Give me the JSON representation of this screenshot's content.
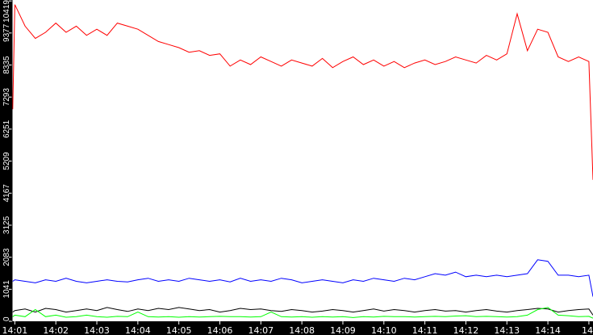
{
  "chart_data": {
    "type": "line",
    "title": "",
    "xlabel": "",
    "ylabel": "",
    "grid": false,
    "legend": "none",
    "background": "#ffffff",
    "xlim": [
      "14:00:56",
      "14:15:06"
    ],
    "ylim": [
      0,
      10450
    ],
    "y_ticks": [
      "0",
      "1041",
      "2083",
      "3125",
      "4167",
      "5209",
      "6251",
      "7293",
      "8335",
      "9377",
      "10419"
    ],
    "x_ticks": [
      "14:01",
      "14:02",
      "14:03",
      "14:04",
      "14:05",
      "14:06",
      "14:07",
      "14:08",
      "14:09",
      "14:10",
      "14:11",
      "14:12",
      "14:13",
      "14:14",
      "14"
    ],
    "x": [
      "14:00:57",
      "14:01:00",
      "14:01:15",
      "14:01:30",
      "14:01:45",
      "14:02:00",
      "14:02:15",
      "14:02:30",
      "14:02:45",
      "14:03:00",
      "14:03:15",
      "14:03:30",
      "14:03:45",
      "14:04:00",
      "14:04:15",
      "14:04:30",
      "14:04:45",
      "14:05:00",
      "14:05:15",
      "14:05:30",
      "14:05:45",
      "14:06:00",
      "14:06:15",
      "14:06:30",
      "14:06:45",
      "14:07:00",
      "14:07:15",
      "14:07:30",
      "14:07:45",
      "14:08:00",
      "14:08:15",
      "14:08:30",
      "14:08:45",
      "14:09:00",
      "14:09:15",
      "14:09:30",
      "14:09:45",
      "14:10:00",
      "14:10:15",
      "14:10:30",
      "14:10:45",
      "14:11:00",
      "14:11:15",
      "14:11:30",
      "14:11:45",
      "14:12:00",
      "14:12:15",
      "14:12:30",
      "14:12:45",
      "14:13:00",
      "14:13:15",
      "14:13:30",
      "14:13:45",
      "14:14:00",
      "14:14:15",
      "14:14:30",
      "14:14:45",
      "14:15:00",
      "14:15:06"
    ],
    "series": [
      {
        "color": "#ff0000",
        "values": [
          6900,
          10300,
          9600,
          9200,
          9400,
          9700,
          9400,
          9600,
          9300,
          9500,
          9300,
          9700,
          9600,
          9500,
          9300,
          9100,
          9000,
          8900,
          8750,
          8800,
          8650,
          8700,
          8300,
          8500,
          8350,
          8600,
          8450,
          8300,
          8500,
          8400,
          8300,
          8550,
          8250,
          8450,
          8600,
          8350,
          8500,
          8300,
          8450,
          8250,
          8400,
          8500,
          8350,
          8450,
          8600,
          8500,
          8400,
          8650,
          8500,
          8700,
          10000,
          8800,
          9500,
          9400,
          8600,
          8450,
          8600,
          8450,
          4600
        ]
      },
      {
        "color": "#0000ff",
        "values": [
          1300,
          1350,
          1300,
          1250,
          1350,
          1300,
          1400,
          1300,
          1250,
          1300,
          1350,
          1300,
          1280,
          1350,
          1400,
          1300,
          1350,
          1300,
          1400,
          1350,
          1300,
          1350,
          1280,
          1400,
          1300,
          1350,
          1300,
          1400,
          1350,
          1250,
          1300,
          1350,
          1300,
          1250,
          1350,
          1300,
          1400,
          1350,
          1300,
          1400,
          1350,
          1450,
          1550,
          1500,
          1600,
          1450,
          1500,
          1450,
          1500,
          1450,
          1500,
          1550,
          2000,
          1950,
          1500,
          1500,
          1450,
          1500,
          800
        ]
      },
      {
        "color": "#000000",
        "values": [
          300,
          350,
          400,
          300,
          420,
          380,
          300,
          350,
          400,
          350,
          450,
          380,
          320,
          400,
          350,
          420,
          380,
          450,
          400,
          350,
          380,
          300,
          350,
          420,
          380,
          400,
          350,
          320,
          380,
          350,
          300,
          330,
          380,
          350,
          300,
          350,
          400,
          330,
          380,
          350,
          300,
          350,
          380,
          330,
          350,
          300,
          350,
          380,
          330,
          300,
          350,
          380,
          420,
          400,
          300,
          350,
          380,
          400,
          200
        ]
      },
      {
        "color": "#00ff00",
        "values": [
          150,
          200,
          150,
          380,
          150,
          200,
          130,
          150,
          200,
          150,
          130,
          160,
          150,
          300,
          150,
          140,
          150,
          130,
          150,
          140,
          150,
          160,
          150,
          150,
          140,
          150,
          300,
          150,
          140,
          150,
          130,
          150,
          140,
          150,
          120,
          150,
          140,
          160,
          150,
          150,
          140,
          150,
          160,
          150,
          170,
          180,
          150,
          160,
          150,
          140,
          150,
          200,
          380,
          450,
          200,
          180,
          150,
          160,
          100
        ]
      }
    ]
  }
}
